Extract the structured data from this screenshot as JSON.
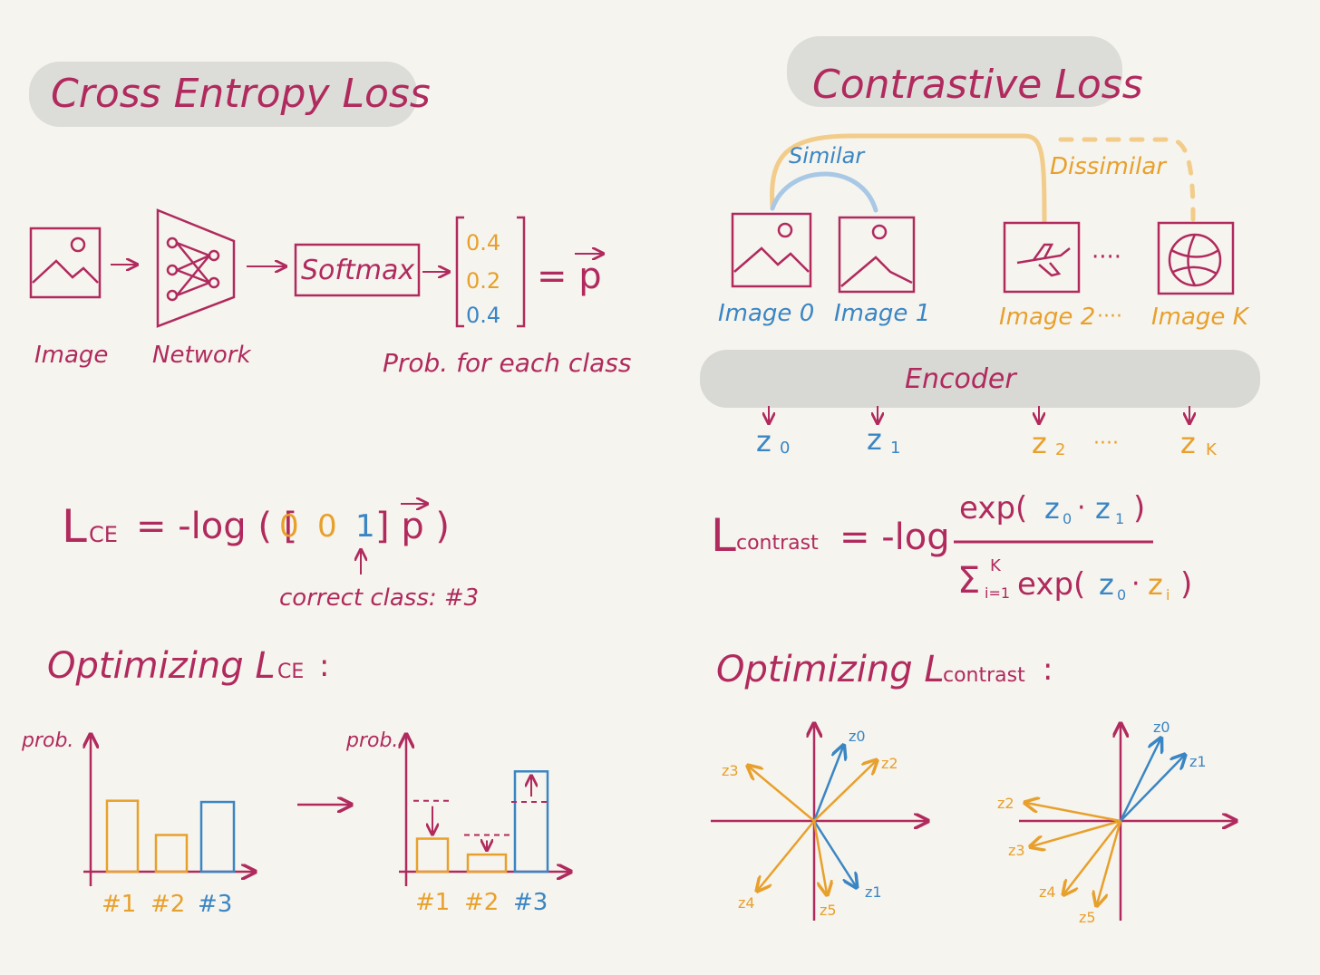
{
  "colors": {
    "magenta": "#b02a5e",
    "blue": "#3a86c4",
    "orange": "#e8a02c",
    "highlight": "#dcdcd8",
    "paper": "#f6f4ee"
  },
  "cross_entropy": {
    "title": "Cross Entropy Loss",
    "pipeline": {
      "image_label": "Image",
      "network_label": "Network",
      "softmax_label": "Softmax",
      "prob_values": [
        "0.4",
        "0.2",
        "0.4"
      ],
      "equals_p": "= p",
      "prob_caption": "Prob. for each class"
    },
    "formula": {
      "lhs": "L",
      "lhs_sub": "CE",
      "rhs_start": "= -log ( [",
      "onehot": [
        "0",
        "0",
        "1"
      ],
      "rhs_end": "] p )",
      "arrow_caption": "correct class: #3"
    },
    "optimizing": {
      "heading": "Optimizing L",
      "heading_sub": "CE",
      "heading_end": ":",
      "ylabel": "prob.",
      "classes": [
        "#1",
        "#2",
        "#3"
      ],
      "before_values": [
        0.58,
        0.3,
        0.57
      ],
      "after_values": [
        0.27,
        0.14,
        0.82
      ]
    }
  },
  "contrastive": {
    "title": "Contrastive Loss",
    "similar_label": "Similar",
    "dissimilar_label": "Dissimilar",
    "images": [
      "Image 0",
      "Image 1",
      "Image 2",
      "Image K"
    ],
    "image_dots": "····",
    "label_dots": "····",
    "encoder_label": "Encoder",
    "z_labels": [
      "z",
      "z",
      "z",
      "z"
    ],
    "z_subs": [
      "0",
      "1",
      "2",
      "K"
    ],
    "z_dots": "····",
    "formula": {
      "lhs": "L",
      "lhs_sub": "contrast",
      "neg_log": "= -log",
      "numerator_pre": "exp(",
      "num_z0": "z",
      "num_z0_sub": "0",
      "dot": "·",
      "num_z1": "z",
      "num_z1_sub": "1",
      "numerator_post": ")",
      "sigma": "Σ",
      "sigma_sup": "K",
      "sigma_sub": "i=1",
      "denominator_pre": "exp(",
      "den_z0": "z",
      "den_z0_sub": "0",
      "den_zi": "z",
      "den_zi_sub": "i",
      "denominator_post": ")"
    },
    "optimizing": {
      "heading": "Optimizing L",
      "heading_sub": "contrast",
      "heading_end": ":",
      "vector_labels": [
        "z0",
        "z1",
        "z2",
        "z3",
        "z4",
        "z5"
      ]
    }
  }
}
